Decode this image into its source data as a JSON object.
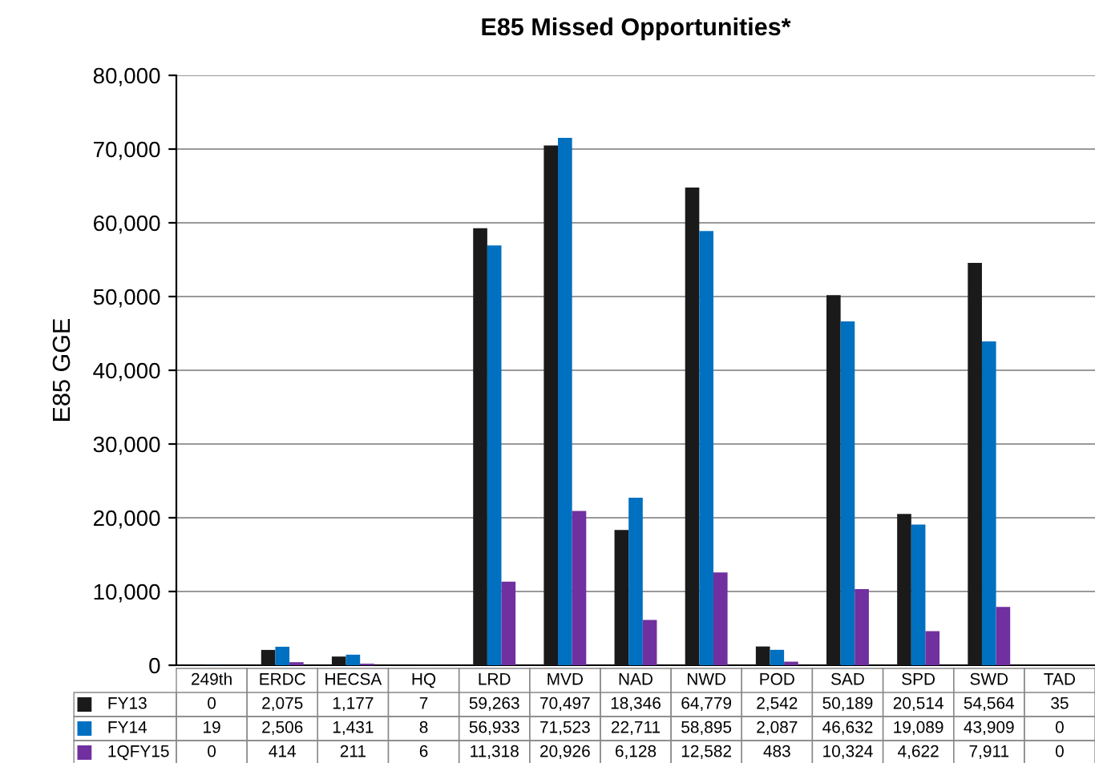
{
  "chart_data": {
    "type": "bar",
    "title": "E85 Missed Opportunities*",
    "ylabel": "E85 GGE",
    "categories": [
      "249th",
      "ERDC",
      "HECSA",
      "HQ",
      "LRD",
      "MVD",
      "NAD",
      "NWD",
      "POD",
      "SAD",
      "SPD",
      "SWD",
      "TAD"
    ],
    "series": [
      {
        "name": "FY13",
        "color": "#1a1a1a",
        "values": [
          0,
          2075,
          1177,
          7,
          59263,
          70497,
          18346,
          64779,
          2542,
          50189,
          20514,
          54564,
          35
        ],
        "value_labels": [
          "0",
          "2,075",
          "1,177",
          "7",
          "59,263",
          "70,497",
          "18,346",
          "64,779",
          "2,542",
          "50,189",
          "20,514",
          "54,564",
          "35"
        ]
      },
      {
        "name": "FY14",
        "color": "#0070c0",
        "values": [
          19,
          2506,
          1431,
          8,
          56933,
          71523,
          22711,
          58895,
          2087,
          46632,
          19089,
          43909,
          0
        ],
        "value_labels": [
          "19",
          "2,506",
          "1,431",
          "8",
          "56,933",
          "71,523",
          "22,711",
          "58,895",
          "2,087",
          "46,632",
          "19,089",
          "43,909",
          "0"
        ]
      },
      {
        "name": "1QFY15",
        "color": "#7030a0",
        "values": [
          0,
          414,
          211,
          6,
          11318,
          20926,
          6128,
          12582,
          483,
          10324,
          4622,
          7911,
          0
        ],
        "value_labels": [
          "0",
          "414",
          "211",
          "6",
          "11,318",
          "20,926",
          "6,128",
          "12,582",
          "483",
          "10,324",
          "4,622",
          "7,911",
          "0"
        ]
      }
    ],
    "ylim": [
      0,
      80000
    ],
    "yticks": [
      {
        "value": 0,
        "label": "0"
      },
      {
        "value": 10000,
        "label": "10,000"
      },
      {
        "value": 20000,
        "label": "20,000"
      },
      {
        "value": 30000,
        "label": "30,000"
      },
      {
        "value": 40000,
        "label": "40,000"
      },
      {
        "value": 50000,
        "label": "50,000"
      },
      {
        "value": 60000,
        "label": "60,000"
      },
      {
        "value": 70000,
        "label": "70,000"
      },
      {
        "value": 80000,
        "label": "80,000"
      }
    ],
    "grid": "y",
    "legend": "bottom"
  }
}
